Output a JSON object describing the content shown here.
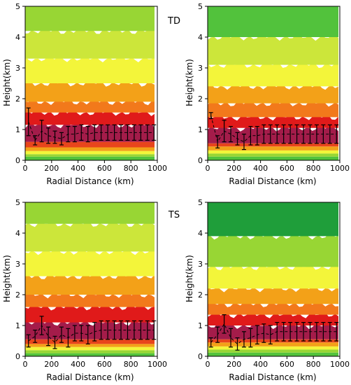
{
  "figure": {
    "background": "#ffffff"
  },
  "colors": {
    "band_colors": [
      "#1f9e3a",
      "#52c23c",
      "#98d634",
      "#cce63a",
      "#f3f53a",
      "#f8d020",
      "#f3a118",
      "#f2791b",
      "#e8451c",
      "#e01a1a",
      "#a41c4a"
    ],
    "errorbar": "#000000",
    "highlight": "#ff66ff"
  },
  "chart_data": [
    {
      "type": "contour",
      "panel": "top-left",
      "label": "TD",
      "xlabel": "Radial Distance (km)",
      "ylabel": "Height(km)",
      "xlim": [
        0,
        1000
      ],
      "ylim": [
        0,
        5
      ],
      "xticks": [
        0,
        200,
        400,
        600,
        800,
        1000
      ],
      "yticks": [
        0,
        1,
        2,
        3,
        4,
        5
      ],
      "band_tops_km": [
        0.12,
        0.2,
        0.3,
        0.42,
        0.6,
        1.15,
        1.55,
        1.9,
        2.5,
        3.3,
        4.2,
        5.0
      ],
      "band_color_index_bottom_up": [
        1,
        2,
        4,
        6,
        8,
        10,
        9,
        7,
        6,
        4,
        3,
        2
      ],
      "series": [
        {
          "kind": "errorbar",
          "x": [
            25,
            75,
            125,
            175,
            225,
            275,
            325,
            375,
            425,
            475,
            525,
            575,
            625,
            675,
            725,
            775,
            825,
            875,
            925,
            975
          ],
          "y": [
            1.25,
            0.65,
            0.95,
            0.8,
            0.75,
            0.7,
            0.85,
            0.85,
            0.9,
            0.85,
            0.9,
            0.9,
            0.9,
            0.9,
            0.9,
            0.9,
            0.9,
            0.9,
            0.9,
            0.9
          ],
          "yerr": [
            0.45,
            0.15,
            0.35,
            0.25,
            0.2,
            0.2,
            0.25,
            0.25,
            0.25,
            0.25,
            0.25,
            0.25,
            0.25,
            0.25,
            0.25,
            0.25,
            0.25,
            0.25,
            0.25,
            0.25
          ]
        }
      ]
    },
    {
      "type": "contour",
      "panel": "top-right",
      "label": "",
      "xlabel": "Radial Distance (km)",
      "ylabel": "Height(km)",
      "xlim": [
        0,
        1000
      ],
      "ylim": [
        0,
        5
      ],
      "xticks": [
        0,
        200,
        400,
        600,
        800,
        1000
      ],
      "yticks": [
        0,
        1,
        2,
        3,
        4,
        5
      ],
      "band_tops_km": [
        0.12,
        0.22,
        0.32,
        0.45,
        0.55,
        1.05,
        1.4,
        1.85,
        2.4,
        3.1,
        4.0,
        5.0
      ],
      "band_color_index_bottom_up": [
        1,
        2,
        4,
        6,
        8,
        10,
        9,
        7,
        6,
        4,
        3,
        1
      ],
      "series": [
        {
          "kind": "errorbar",
          "x": [
            25,
            75,
            125,
            175,
            225,
            275,
            325,
            375,
            425,
            475,
            525,
            575,
            625,
            675,
            725,
            775,
            825,
            875,
            925,
            975
          ],
          "y": [
            1.45,
            0.6,
            0.95,
            0.85,
            0.7,
            0.6,
            0.8,
            0.8,
            0.85,
            0.85,
            0.85,
            0.85,
            0.85,
            0.85,
            0.85,
            0.85,
            0.85,
            0.85,
            0.85,
            0.85
          ],
          "yerr": [
            0.1,
            0.2,
            0.35,
            0.25,
            0.2,
            0.25,
            0.3,
            0.3,
            0.3,
            0.3,
            0.3,
            0.3,
            0.3,
            0.3,
            0.3,
            0.3,
            0.3,
            0.3,
            0.3,
            0.3
          ]
        }
      ]
    },
    {
      "type": "contour",
      "panel": "bottom-left",
      "label": "TS",
      "xlabel": "Radial Distance (km)",
      "ylabel": "Height(km)",
      "xlim": [
        0,
        1000
      ],
      "ylim": [
        0,
        5
      ],
      "xticks": [
        0,
        200,
        400,
        600,
        800,
        1000
      ],
      "yticks": [
        0,
        1,
        2,
        3,
        4,
        5
      ],
      "band_tops_km": [
        0.1,
        0.2,
        0.3,
        0.4,
        0.55,
        1.1,
        1.6,
        2.0,
        2.6,
        3.4,
        4.3,
        5.0
      ],
      "band_color_index_bottom_up": [
        1,
        2,
        4,
        6,
        8,
        10,
        9,
        7,
        6,
        4,
        3,
        2
      ],
      "series": [
        {
          "kind": "errorbar",
          "x": [
            25,
            75,
            125,
            175,
            225,
            275,
            325,
            375,
            425,
            475,
            525,
            575,
            625,
            675,
            725,
            775,
            825,
            875,
            925,
            975
          ],
          "y": [
            0.5,
            0.65,
            1.0,
            0.65,
            0.45,
            0.7,
            0.6,
            0.75,
            0.75,
            0.7,
            0.8,
            0.85,
            0.85,
            0.85,
            0.85,
            0.85,
            0.85,
            0.85,
            0.85,
            0.85
          ],
          "yerr": [
            0.2,
            0.2,
            0.3,
            0.3,
            0.2,
            0.25,
            0.3,
            0.25,
            0.25,
            0.3,
            0.3,
            0.3,
            0.3,
            0.3,
            0.3,
            0.3,
            0.3,
            0.3,
            0.3,
            0.3
          ]
        }
      ]
    },
    {
      "type": "contour",
      "panel": "bottom-right",
      "label": "",
      "xlabel": "Radial Distance (km)",
      "ylabel": "Height(km)",
      "xlim": [
        0,
        1000
      ],
      "ylim": [
        0,
        5
      ],
      "xticks": [
        0,
        200,
        400,
        600,
        800,
        1000
      ],
      "yticks": [
        0,
        1,
        2,
        3,
        4,
        5
      ],
      "band_tops_km": [
        0.12,
        0.22,
        0.32,
        0.45,
        0.55,
        1.0,
        1.35,
        1.7,
        2.2,
        2.9,
        3.9,
        5.0
      ],
      "band_color_index_bottom_up": [
        1,
        2,
        4,
        6,
        8,
        10,
        9,
        7,
        6,
        4,
        2,
        0
      ],
      "series": [
        {
          "kind": "errorbar",
          "x": [
            25,
            75,
            125,
            175,
            225,
            275,
            325,
            375,
            425,
            475,
            525,
            575,
            625,
            675,
            725,
            775,
            825,
            875,
            925,
            975
          ],
          "y": [
            0.45,
            0.7,
            1.05,
            0.6,
            0.4,
            0.55,
            0.6,
            0.7,
            0.75,
            0.7,
            0.8,
            0.8,
            0.8,
            0.8,
            0.8,
            0.8,
            0.8,
            0.8,
            0.8,
            0.8
          ],
          "yerr": [
            0.15,
            0.25,
            0.3,
            0.3,
            0.2,
            0.25,
            0.3,
            0.3,
            0.3,
            0.3,
            0.3,
            0.3,
            0.3,
            0.3,
            0.3,
            0.3,
            0.3,
            0.3,
            0.3,
            0.3
          ]
        }
      ]
    }
  ]
}
